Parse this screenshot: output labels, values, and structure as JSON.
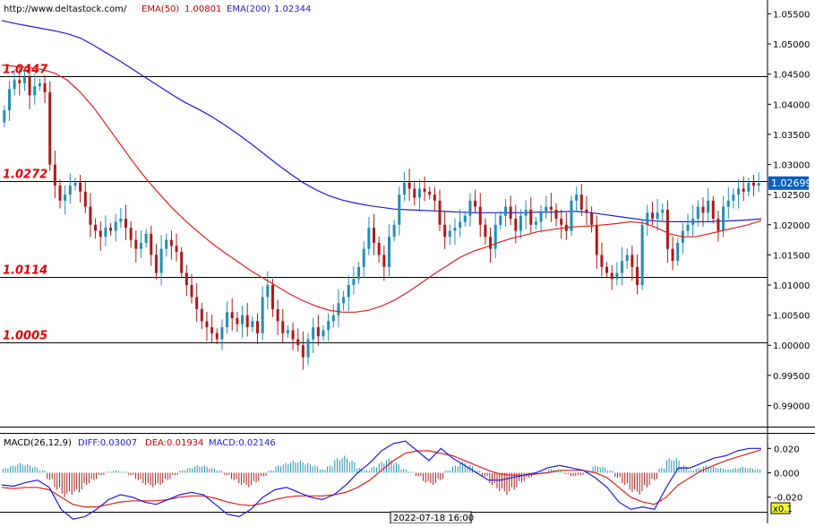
{
  "header": {
    "source": "http://www.deltastock.com/",
    "ema50_label": "EMA(50)",
    "ema50_value": "1.00801",
    "ema200_label": "EMA(200)",
    "ema200_value": "1.02344"
  },
  "macd_header": {
    "name": "MACD(26,12,9)",
    "diff_label": "DIFF:0.03007",
    "dea_label": "DEA:0.01934",
    "macd_label": "MACD:0.02146"
  },
  "footer": {
    "cursor_time": "2022-07-18 16:00",
    "zoom": "x0.1"
  },
  "colors": {
    "ema50": "#e0201a",
    "ema200": "#1c1ce0",
    "bull": "#1f8fb5",
    "bear": "#b01818",
    "level_text": "#e00000",
    "macd_bar_pos": "#1f8fb5",
    "macd_bar_neg": "#b01818",
    "diff_line": "#1c1ce0",
    "dea_line": "#e0201a",
    "current_price_box": "#0a5fc0"
  },
  "chart_data": {
    "type": "candlestick",
    "price_axis": {
      "ylim": [
        0.9865,
        1.0573
      ],
      "ticks": [
        "1.05500",
        "1.05000",
        "1.04500",
        "1.04000",
        "1.03500",
        "1.03000",
        "1.02500",
        "1.02000",
        "1.01500",
        "1.01000",
        "1.00500",
        "1.00000",
        "0.99500",
        "0.99000"
      ]
    },
    "current_price": "1.02699",
    "levels": [
      {
        "value": 1.0447,
        "label": "1.0447"
      },
      {
        "value": 1.0272,
        "label": "1.0272"
      },
      {
        "value": 1.0114,
        "label": "1.0114"
      },
      {
        "value": 1.0005,
        "label": "1.0005"
      }
    ],
    "closes": [
      1.039,
      1.0425,
      1.044,
      1.0435,
      1.0445,
      1.0415,
      1.043,
      1.0435,
      1.042,
      1.03,
      1.0265,
      1.024,
      1.025,
      1.0265,
      1.027,
      1.0255,
      1.023,
      1.02,
      1.019,
      1.018,
      1.0195,
      1.019,
      1.0205,
      1.021,
      1.0195,
      1.0175,
      1.016,
      1.017,
      1.0185,
      1.015,
      1.012,
      1.016,
      1.0175,
      1.0165,
      1.0155,
      1.012,
      1.01,
      1.008,
      1.006,
      1.004,
      1.003,
      1.002,
      1.001,
      1.003,
      1.0055,
      1.0045,
      1.0035,
      1.005,
      1.003,
      1.004,
      1.002,
      1.008,
      1.01,
      1.006,
      1.004,
      1.002,
      1.0025,
      1.001,
      1.0,
      0.998,
      1.001,
      1.003,
      1.0015,
      1.0025,
      1.004,
      1.005,
      1.007,
      1.008,
      1.01,
      1.011,
      1.013,
      1.016,
      1.0195,
      1.017,
      1.015,
      1.013,
      1.018,
      1.02,
      1.025,
      1.027,
      1.026,
      1.0245,
      1.026,
      1.0255,
      1.025,
      1.024,
      1.02,
      1.018,
      1.019,
      1.0195,
      1.0205,
      1.0215,
      1.024,
      1.023,
      1.02,
      1.018,
      1.016,
      1.02,
      1.0215,
      1.023,
      1.021,
      1.019,
      1.0215,
      1.0225,
      1.02,
      1.0205,
      1.022,
      1.023,
      1.0225,
      1.021,
      1.02,
      1.019,
      1.024,
      1.025,
      1.0225,
      1.022,
      1.02,
      1.015,
      1.013,
      1.012,
      1.011,
      1.012,
      1.014,
      1.015,
      1.013,
      1.01,
      1.02,
      1.022,
      1.021,
      1.022,
      1.0225,
      1.016,
      1.014,
      1.017,
      1.019,
      1.02,
      1.021,
      1.023,
      1.022,
      1.024,
      1.021,
      1.019,
      1.023,
      1.024,
      1.025,
      1.026,
      1.0255,
      1.027,
      1.0265,
      1.0269
    ],
    "ema50": [
      1.0465,
      1.0463,
      1.0461,
      1.0458,
      1.0452,
      1.044,
      1.042,
      1.0395,
      1.0365,
      1.0335,
      1.0305,
      1.0277,
      1.0252,
      1.0228,
      1.0207,
      1.0188,
      1.017,
      1.0154,
      1.0139,
      1.0124,
      1.0111,
      1.0098,
      1.0085,
      1.0074,
      1.0065,
      1.0058,
      1.0055,
      1.0055,
      1.0058,
      1.0065,
      1.0075,
      1.0088,
      1.0103,
      1.0118,
      1.0132,
      1.0146,
      1.0156,
      1.0163,
      1.0171,
      1.0178,
      1.0183,
      1.0189,
      1.0192,
      1.0195,
      1.0197,
      1.0198,
      1.02,
      1.0202,
      1.0205,
      1.0203,
      1.0195,
      1.0185,
      1.018,
      1.018,
      1.0185,
      1.019,
      1.0195,
      1.02,
      1.0207
    ],
    "ema200": [
      1.0539,
      1.0534,
      1.053,
      1.0526,
      1.0522,
      1.0517,
      1.051,
      1.0498,
      1.0485,
      1.0472,
      1.0458,
      1.0444,
      1.043,
      1.0416,
      1.0403,
      1.0392,
      1.038,
      1.0366,
      1.0351,
      1.0335,
      1.0318,
      1.0301,
      1.0285,
      1.027,
      1.0258,
      1.0248,
      1.0241,
      1.0236,
      1.0232,
      1.0229,
      1.0226,
      1.0225,
      1.0224,
      1.0223,
      1.0222,
      1.0221,
      1.022,
      1.022,
      1.022,
      1.022,
      1.022,
      1.0221,
      1.0221,
      1.0222,
      1.0222,
      1.022,
      1.0217,
      1.0214,
      1.0211,
      1.0208,
      1.0206,
      1.0205,
      1.0205,
      1.0205,
      1.0205,
      1.0206,
      1.0207,
      1.0208,
      1.021
    ],
    "macd_axis": {
      "ylim": [
        -0.032,
        0.032
      ],
      "ticks": [
        "0.020",
        "0.000",
        "-0.020"
      ]
    },
    "macd_hist": [
      0.004,
      0.006,
      0.008,
      0.007,
      0.005,
      0.002,
      -0.006,
      -0.014,
      -0.02,
      -0.018,
      -0.016,
      -0.01,
      -0.006,
      -0.002,
      0.001,
      0.002,
      0.001,
      -0.002,
      -0.006,
      -0.01,
      -0.012,
      -0.01,
      -0.006,
      -0.002,
      0.002,
      0.004,
      0.006,
      0.006,
      0.004,
      0.002,
      -0.002,
      -0.006,
      -0.01,
      -0.012,
      -0.008,
      -0.003,
      0.002,
      0.006,
      0.008,
      0.01,
      0.01,
      0.008,
      0.006,
      0.003,
      0.006,
      0.012,
      0.014,
      0.01,
      0.004,
      0.002,
      0.005,
      0.009,
      0.012,
      0.008,
      0.003,
      0.001,
      -0.003,
      -0.008,
      -0.01,
      -0.006,
      0.002,
      0.006,
      0.009,
      0.006,
      0.002,
      -0.003,
      -0.01,
      -0.015,
      -0.018,
      -0.014,
      -0.008,
      -0.004,
      -0.001,
      0.001,
      0.003,
      0.002,
      -0.001,
      -0.003,
      -0.002,
      0.002,
      0.006,
      0.005,
      0.002,
      -0.004,
      -0.01,
      -0.016,
      -0.018,
      -0.012,
      -0.006,
      0.004,
      0.012,
      0.012,
      0.006,
      0.002,
      0.004,
      0.006,
      0.005,
      0.004,
      0.003,
      0.004,
      0.005,
      0.004,
      0.003
    ],
    "macd_diff": [
      -0.01,
      -0.011,
      -0.008,
      -0.006,
      -0.012,
      -0.03,
      -0.038,
      -0.036,
      -0.03,
      -0.022,
      -0.018,
      -0.02,
      -0.024,
      -0.026,
      -0.022,
      -0.018,
      -0.016,
      -0.018,
      -0.026,
      -0.034,
      -0.036,
      -0.03,
      -0.02,
      -0.014,
      -0.012,
      -0.016,
      -0.02,
      -0.022,
      -0.018,
      -0.01,
      0.0,
      0.008,
      0.018,
      0.024,
      0.026,
      0.018,
      0.01,
      0.02,
      0.012,
      0.006,
      0.0,
      -0.006,
      -0.006,
      -0.004,
      -0.002,
      0.0,
      0.004,
      0.006,
      0.004,
      0.002,
      -0.004,
      -0.012,
      -0.024,
      -0.03,
      -0.028,
      -0.03,
      -0.012,
      0.004,
      0.004,
      0.008,
      0.012,
      0.014,
      0.018,
      0.02,
      0.02
    ],
    "macd_dea": [
      -0.012,
      -0.013,
      -0.012,
      -0.012,
      -0.014,
      -0.02,
      -0.026,
      -0.028,
      -0.028,
      -0.026,
      -0.024,
      -0.023,
      -0.023,
      -0.023,
      -0.022,
      -0.02,
      -0.019,
      -0.019,
      -0.021,
      -0.024,
      -0.026,
      -0.027,
      -0.025,
      -0.022,
      -0.02,
      -0.019,
      -0.019,
      -0.019,
      -0.018,
      -0.016,
      -0.012,
      -0.006,
      0.002,
      0.01,
      0.016,
      0.018,
      0.018,
      0.016,
      0.014,
      0.01,
      0.006,
      0.002,
      -0.001,
      -0.002,
      -0.002,
      -0.001,
      0.0,
      0.002,
      0.002,
      0.002,
      0.0,
      -0.004,
      -0.012,
      -0.02,
      -0.024,
      -0.026,
      -0.02,
      -0.01,
      -0.004,
      0.002,
      0.006,
      0.01,
      0.013,
      0.016,
      0.019
    ]
  }
}
